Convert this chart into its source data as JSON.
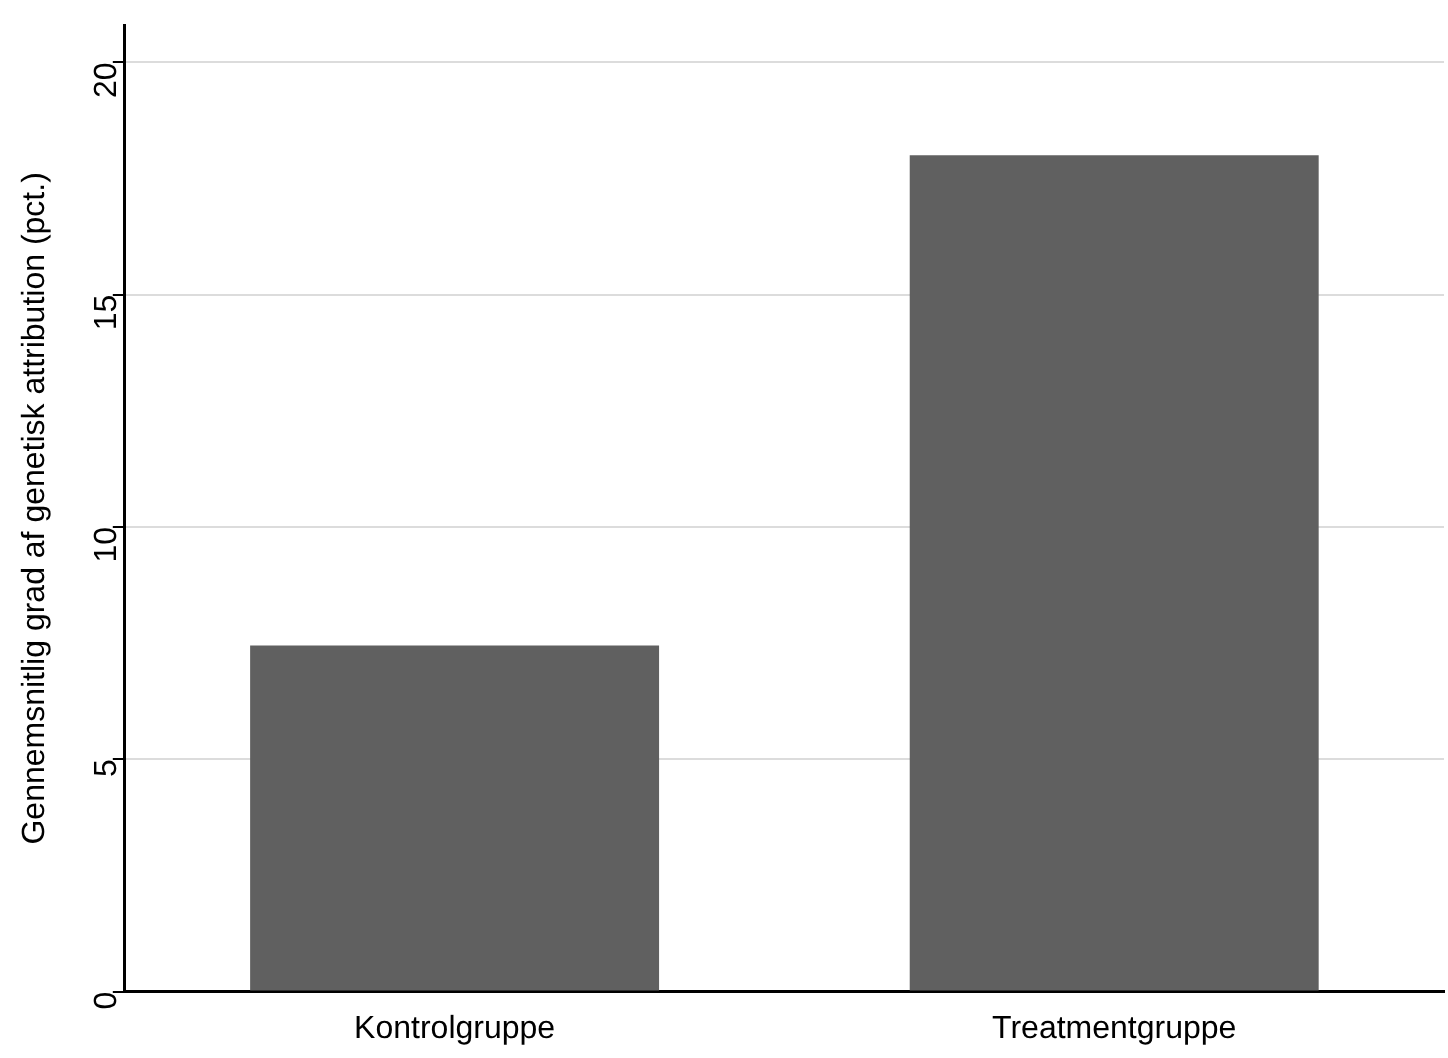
{
  "chart_data": {
    "type": "bar",
    "ylabel": "Gennemsnitlig grad af genetisk attribution (pct.)",
    "categories": [
      "Kontrolgruppe",
      "Treatmentgruppe"
    ],
    "values": [
      7.45,
      18.0
    ],
    "color": "#606060",
    "ylim": [
      0,
      20.8
    ],
    "yticks": [
      0,
      5,
      10,
      15,
      20
    ],
    "grid": "y"
  }
}
